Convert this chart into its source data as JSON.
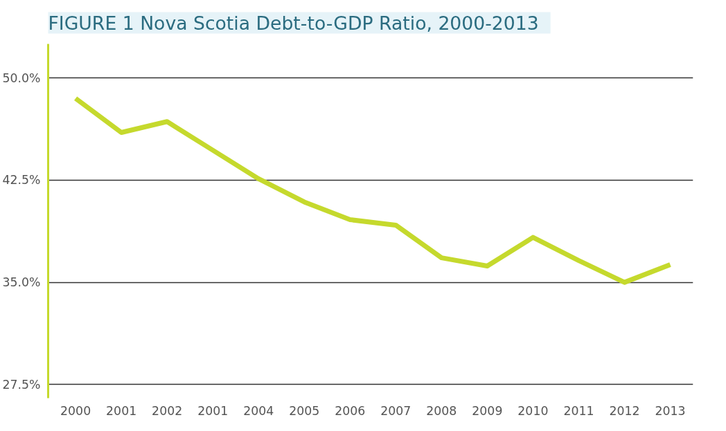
{
  "chart_data": {
    "type": "line",
    "title": "FIGURE 1   Nova Scotia Debt-to-GDP Ratio, 2000-2013",
    "categories": [
      "2000",
      "2001",
      "2002",
      "2001",
      "2004",
      "2005",
      "2006",
      "2007",
      "2008",
      "2009",
      "2010",
      "2011",
      "2012",
      "2013"
    ],
    "series": [
      {
        "color": "#c5d92d",
        "values": [
          48.5,
          46.0,
          46.8,
          44.7,
          42.6,
          40.9,
          39.6,
          39.2,
          36.8,
          36.2,
          38.3,
          36.6,
          35.0,
          36.3
        ]
      }
    ],
    "ylim": [
      26.5,
      52.5
    ],
    "yticks": [
      {
        "value": 27.5,
        "label": "27.5%"
      },
      {
        "value": 35,
        "label": "35.0%"
      },
      {
        "value": 42.5,
        "label": "42.5%"
      },
      {
        "value": 50,
        "label": "50.0%"
      }
    ],
    "grid": "y",
    "marker": "none",
    "line_style": "solid"
  }
}
